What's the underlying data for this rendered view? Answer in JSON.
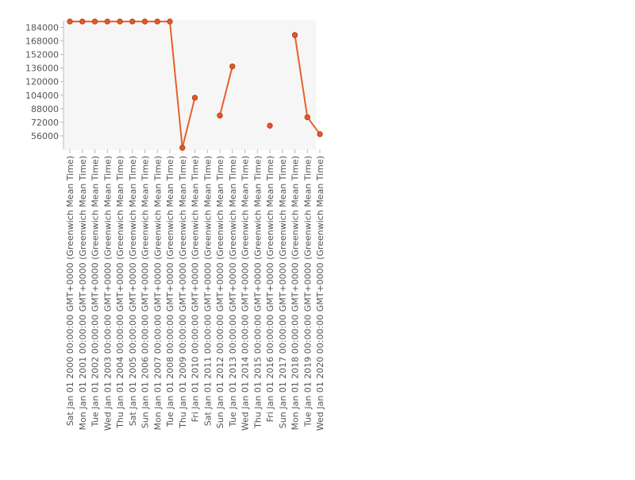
{
  "chart_data": {
    "type": "line",
    "title": "",
    "xlabel": "",
    "ylabel": "",
    "ylim": [
      40000,
      192000
    ],
    "y_ticks": [
      56000,
      72000,
      88000,
      104000,
      120000,
      136000,
      152000,
      168000,
      184000
    ],
    "grid": true,
    "legend": "none",
    "colors": {
      "line": "#e8602c",
      "marker_fill": "#e05a28",
      "marker_stroke": "#b8431a",
      "grid": "#dcdcdc",
      "axis": "#bbbbbb",
      "text": "#555555"
    },
    "categories": [
      "Sat Jan 01 2000 00:00:00 GMT+0000 (Greenwich Mean Time)",
      "Mon Jan 01 2001 00:00:00 GMT+0000 (Greenwich Mean Time)",
      "Tue Jan 01 2002 00:00:00 GMT+0000 (Greenwich Mean Time)",
      "Wed Jan 01 2003 00:00:00 GMT+0000 (Greenwich Mean Time)",
      "Thu Jan 01 2004 00:00:00 GMT+0000 (Greenwich Mean Time)",
      "Sat Jan 01 2005 00:00:00 GMT+0000 (Greenwich Mean Time)",
      "Sun Jan 01 2006 00:00:00 GMT+0000 (Greenwich Mean Time)",
      "Mon Jan 01 2007 00:00:00 GMT+0000 (Greenwich Mean Time)",
      "Tue Jan 01 2008 00:00:00 GMT+0000 (Greenwich Mean Time)",
      "Thu Jan 01 2009 00:00:00 GMT+0000 (Greenwich Mean Time)",
      "Fri Jan 01 2010 00:00:00 GMT+0000 (Greenwich Mean Time)",
      "Sat Jan 01 2011 00:00:00 GMT+0000 (Greenwich Mean Time)",
      "Sun Jan 01 2012 00:00:00 GMT+0000 (Greenwich Mean Time)",
      "Tue Jan 01 2013 00:00:00 GMT+0000 (Greenwich Mean Time)",
      "Wed Jan 01 2014 00:00:00 GMT+0000 (Greenwich Mean Time)",
      "Thu Jan 01 2015 00:00:00 GMT+0000 (Greenwich Mean Time)",
      "Fri Jan 01 2016 00:00:00 GMT+0000 (Greenwich Mean Time)",
      "Sun Jan 01 2017 00:00:00 GMT+0000 (Greenwich Mean Time)",
      "Mon Jan 01 2018 00:00:00 GMT+0000 (Greenwich Mean Time)",
      "Tue Jan 01 2019 00:00:00 GMT+0000 (Greenwich Mean Time)",
      "Wed Jan 01 2020 00:00:00 GMT+0000 (Greenwich Mean Time)"
    ],
    "series": [
      {
        "values": [
          191000,
          191000,
          191000,
          191000,
          191000,
          191000,
          191000,
          191000,
          191000,
          42000,
          101000,
          null,
          80000,
          138000,
          null,
          null,
          68000,
          null,
          175000,
          78000,
          58000
        ]
      }
    ]
  }
}
